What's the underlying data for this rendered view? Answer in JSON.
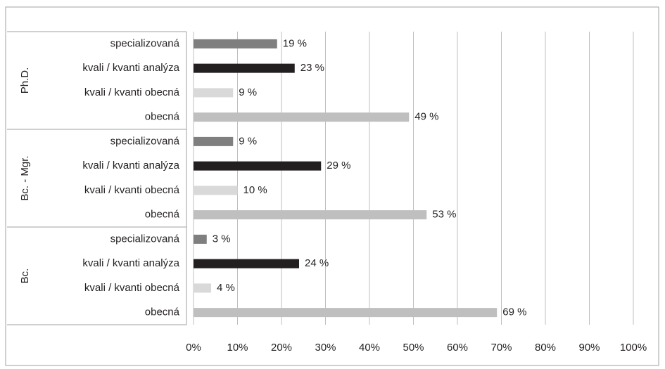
{
  "chart_data": {
    "type": "bar",
    "orientation": "horizontal",
    "groups": [
      {
        "name": "Ph.D.",
        "categories": [
          "specializovaná",
          "kvali / kvanti analýza",
          "kvali / kvanti obecná",
          "obecná"
        ],
        "values": [
          19,
          23,
          9,
          49
        ],
        "value_labels": [
          "19 %",
          "23 %",
          "9 %",
          "49 %"
        ]
      },
      {
        "name": "Bc. - Mgr.",
        "categories": [
          "specializovaná",
          "kvali / kvanti analýza",
          "kvali / kvanti obecná",
          "obecná"
        ],
        "values": [
          9,
          29,
          10,
          53
        ],
        "value_labels": [
          "9 %",
          "29 %",
          "10 %",
          "53 %"
        ]
      },
      {
        "name": "Bc.",
        "categories": [
          "specializovaná",
          "kvali / kvanti analýza",
          "kvali / kvanti obecná",
          "obecná"
        ],
        "values": [
          3,
          24,
          4,
          69
        ],
        "value_labels": [
          "3 %",
          "24 %",
          "4 %",
          "69 %"
        ]
      }
    ],
    "colors": [
      "#7f7f7f",
      "#231f20",
      "#d9d9d9",
      "#bfbfbf"
    ],
    "xlim": [
      0,
      100
    ],
    "xticks": [
      {
        "value": 0,
        "label": "0%"
      },
      {
        "value": 10,
        "label": "10%"
      },
      {
        "value": 20,
        "label": "20%"
      },
      {
        "value": 30,
        "label": "30%"
      },
      {
        "value": 40,
        "label": "40%"
      },
      {
        "value": 50,
        "label": "50%"
      },
      {
        "value": 60,
        "label": "60%"
      },
      {
        "value": 70,
        "label": "70%"
      },
      {
        "value": 80,
        "label": "80%"
      },
      {
        "value": 90,
        "label": "90%"
      },
      {
        "value": 100,
        "label": "100%"
      }
    ],
    "grid": true
  }
}
